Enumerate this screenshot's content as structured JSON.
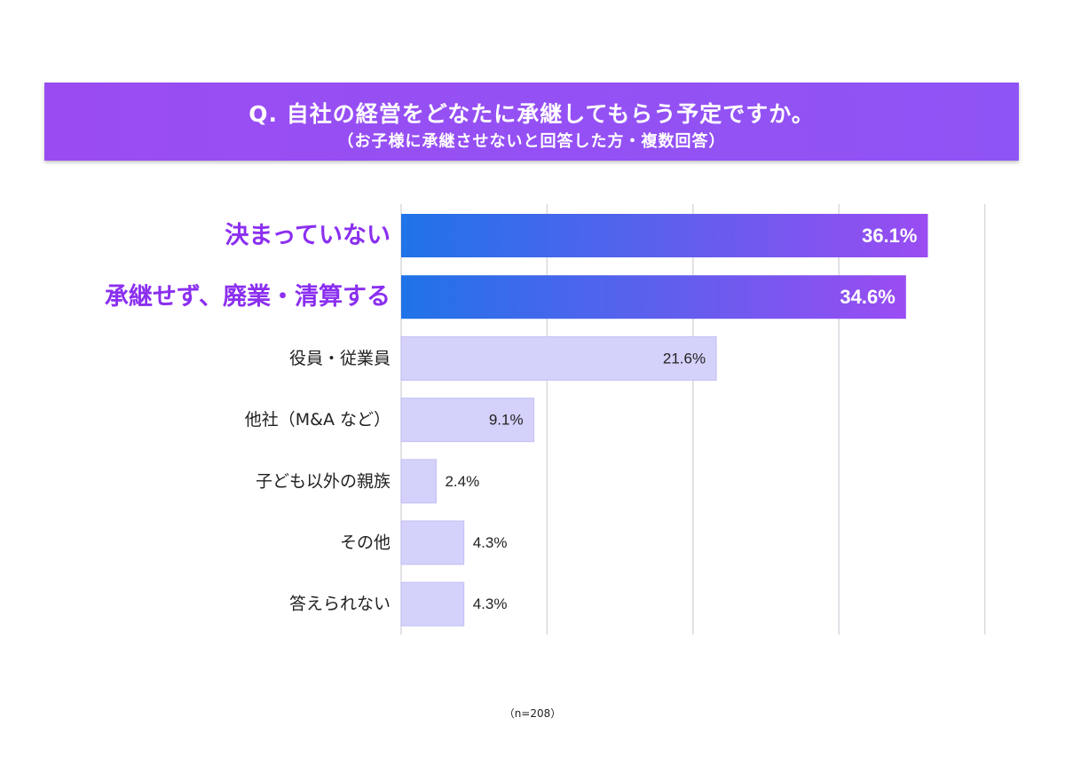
{
  "header": {
    "title": "Q. 自社の経営をどなたに承継してもらう予定ですか。",
    "subtitle": "（お子様に承継させないと回答した方・複数回答）"
  },
  "footer": {
    "note": "（n=208）"
  },
  "colors": {
    "highlight_start": "#1f73e8",
    "highlight_end": "#9a4cf2",
    "highlight_label": "#8b2ff0",
    "normal_bar": "#d4d1fb",
    "normal_bar_edge": "#c3bff5",
    "grid": "#d9d9de"
  },
  "chart_data": {
    "type": "bar",
    "orientation": "horizontal",
    "categories": [
      "決まっていない",
      "承継せず、廃業・清算する",
      "役員・従業員",
      "他社（M&A など）",
      "子ども以外の親族",
      "その他",
      "答えられない"
    ],
    "values": [
      36.1,
      34.6,
      21.6,
      9.1,
      2.4,
      4.3,
      4.3
    ],
    "value_labels": [
      "36.1%",
      "34.6%",
      "21.6%",
      "9.1%",
      "2.4%",
      "4.3%",
      "4.3%"
    ],
    "highlighted": [
      true,
      true,
      false,
      false,
      false,
      false,
      false
    ],
    "xlim": [
      0,
      40
    ],
    "gridlines": [
      0,
      10,
      20,
      30,
      40
    ],
    "grid": true
  }
}
